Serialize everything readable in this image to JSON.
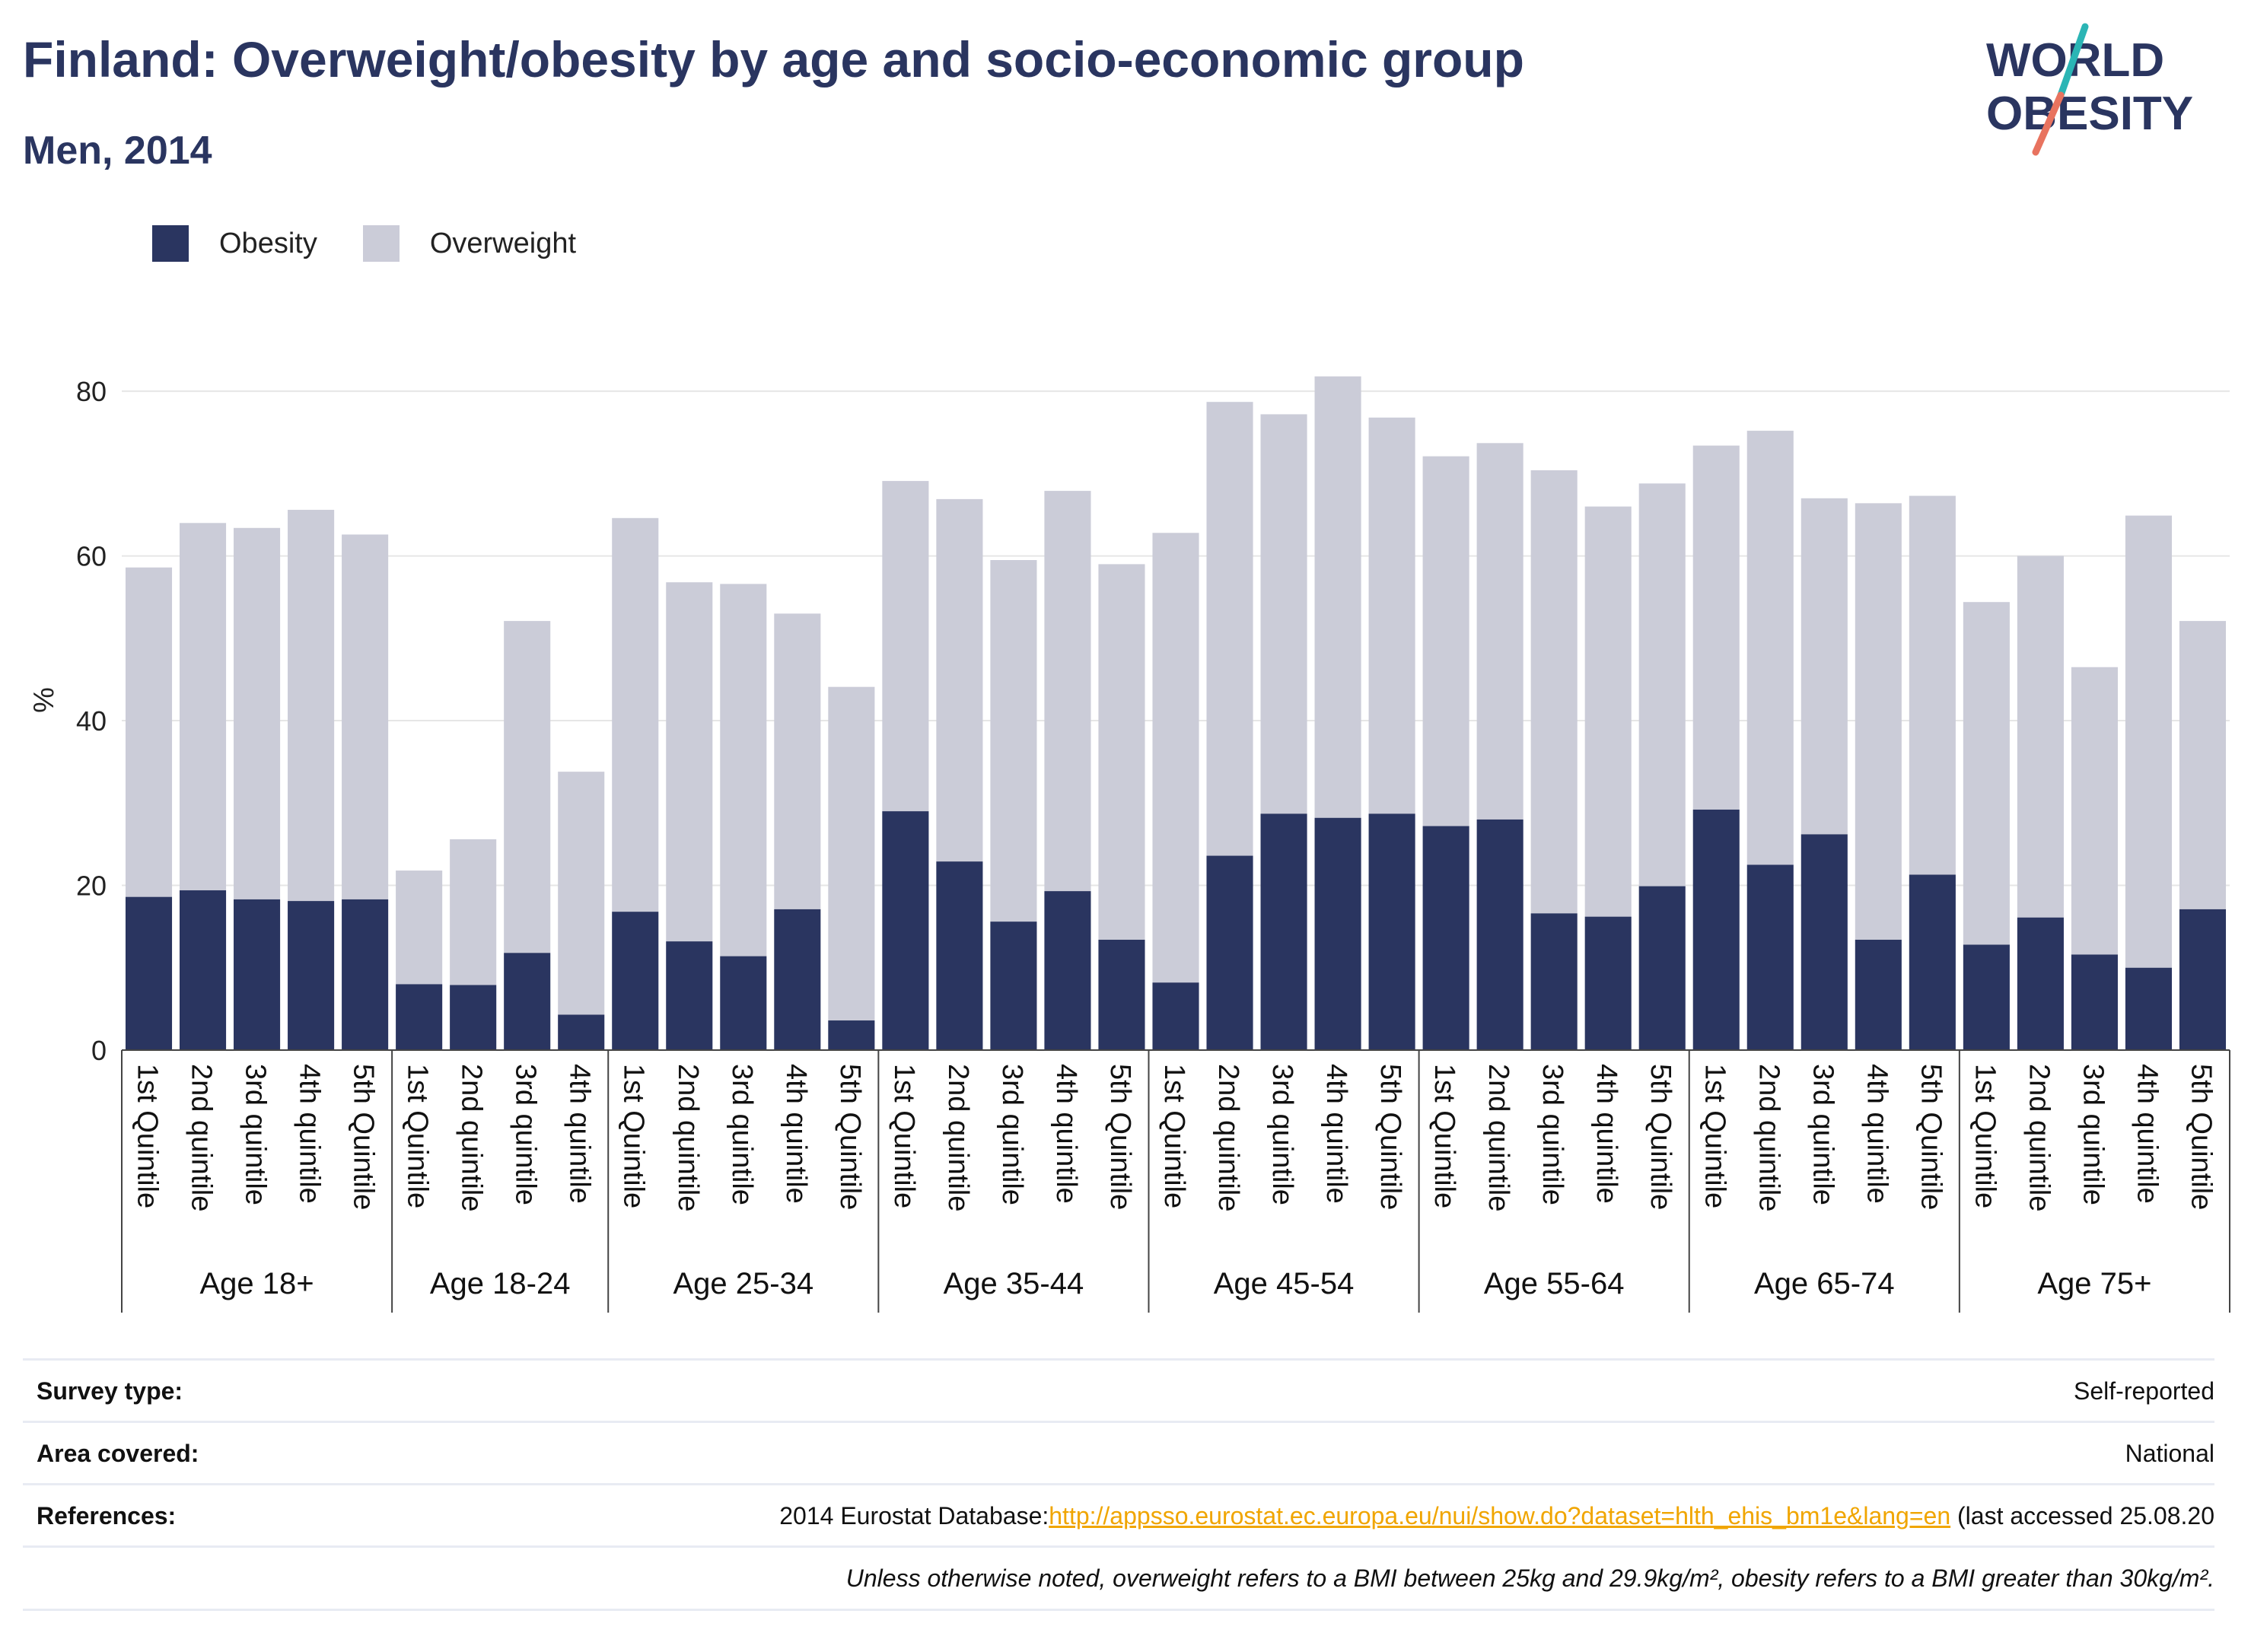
{
  "header": {
    "title": "Finland: Overweight/obesity by age and socio-economic group",
    "subtitle": "Men, 2014"
  },
  "logo": {
    "line1": "WORLD",
    "line2": "OBESITY",
    "icon": "world-obesity-logo"
  },
  "colors": {
    "obesity": "#2a3560",
    "overweight": "#cbccd8",
    "accent_teal": "#2bb5b5",
    "accent_red": "#e8735f",
    "link": "#f0a500"
  },
  "chart_data": {
    "type": "bar",
    "stacked": true,
    "ylabel": "%",
    "ylim": [
      0,
      85
    ],
    "yticks": [
      0,
      20,
      40,
      60,
      80
    ],
    "grid": true,
    "legend_position": "top-left",
    "series_names": [
      "Obesity",
      "Overweight"
    ],
    "groups": [
      {
        "label": "Age 18+",
        "bars": [
          {
            "label": "1st Quintile",
            "obesity": 18.6,
            "total": 58.6
          },
          {
            "label": "2nd quintile",
            "obesity": 19.4,
            "total": 64.0
          },
          {
            "label": "3rd quintile",
            "obesity": 18.3,
            "total": 63.4
          },
          {
            "label": "4th quintile",
            "obesity": 18.1,
            "total": 65.6
          },
          {
            "label": "5th Quintile",
            "obesity": 18.3,
            "total": 62.6
          }
        ]
      },
      {
        "label": "Age 18-24",
        "bars": [
          {
            "label": "1st Quintile",
            "obesity": 8.0,
            "total": 21.8
          },
          {
            "label": "2nd quintile",
            "obesity": 7.9,
            "total": 25.6
          },
          {
            "label": "3rd quintile",
            "obesity": 11.8,
            "total": 52.1
          },
          {
            "label": "4th quintile",
            "obesity": 4.3,
            "total": 33.8
          }
        ]
      },
      {
        "label": "Age 25-34",
        "bars": [
          {
            "label": "1st Quintile",
            "obesity": 16.8,
            "total": 64.6
          },
          {
            "label": "2nd quintile",
            "obesity": 13.2,
            "total": 56.8
          },
          {
            "label": "3rd quintile",
            "obesity": 11.4,
            "total": 56.6
          },
          {
            "label": "4th quintile",
            "obesity": 17.1,
            "total": 53.0
          },
          {
            "label": "5th Quintile",
            "obesity": 3.6,
            "total": 44.1
          }
        ]
      },
      {
        "label": "Age 35-44",
        "bars": [
          {
            "label": "1st Quintile",
            "obesity": 29.0,
            "total": 69.1
          },
          {
            "label": "2nd quintile",
            "obesity": 22.9,
            "total": 66.9
          },
          {
            "label": "3rd quintile",
            "obesity": 15.6,
            "total": 59.5
          },
          {
            "label": "4th quintile",
            "obesity": 19.3,
            "total": 67.9
          },
          {
            "label": "5th Quintile",
            "obesity": 13.4,
            "total": 59.0
          }
        ]
      },
      {
        "label": "Age 45-54",
        "bars": [
          {
            "label": "1st Quintile",
            "obesity": 8.2,
            "total": 62.8
          },
          {
            "label": "2nd quintile",
            "obesity": 23.6,
            "total": 78.7
          },
          {
            "label": "3rd quintile",
            "obesity": 28.7,
            "total": 77.2
          },
          {
            "label": "4th quintile",
            "obesity": 28.2,
            "total": 81.8
          },
          {
            "label": "5th Quintile",
            "obesity": 28.7,
            "total": 76.8
          }
        ]
      },
      {
        "label": "Age 55-64",
        "bars": [
          {
            "label": "1st Quintile",
            "obesity": 27.2,
            "total": 72.1
          },
          {
            "label": "2nd quintile",
            "obesity": 28.0,
            "total": 73.7
          },
          {
            "label": "3rd quintile",
            "obesity": 16.6,
            "total": 70.4
          },
          {
            "label": "4th quintile",
            "obesity": 16.2,
            "total": 66.0
          },
          {
            "label": "5th Quintile",
            "obesity": 19.9,
            "total": 68.8
          }
        ]
      },
      {
        "label": "Age 65-74",
        "bars": [
          {
            "label": "1st Quintile",
            "obesity": 29.2,
            "total": 73.4
          },
          {
            "label": "2nd quintile",
            "obesity": 22.5,
            "total": 75.2
          },
          {
            "label": "3rd quintile",
            "obesity": 26.2,
            "total": 67.0
          },
          {
            "label": "4th quintile",
            "obesity": 13.4,
            "total": 66.4
          },
          {
            "label": "5th Quintile",
            "obesity": 21.3,
            "total": 67.3
          }
        ]
      },
      {
        "label": "Age 75+",
        "bars": [
          {
            "label": "1st Quintile",
            "obesity": 12.8,
            "total": 54.4
          },
          {
            "label": "2nd quintile",
            "obesity": 16.1,
            "total": 60.0
          },
          {
            "label": "3rd quintile",
            "obesity": 11.6,
            "total": 46.5
          },
          {
            "label": "4th quintile",
            "obesity": 10.0,
            "total": 64.9
          },
          {
            "label": "5th Quintile",
            "obesity": 17.1,
            "total": 52.1
          }
        ]
      }
    ]
  },
  "info": {
    "survey_type_label": "Survey type:",
    "survey_type_value": "Self-reported",
    "area_label": "Area covered:",
    "area_value": "National",
    "references_label": "References:",
    "references_prefix": "2014 Eurostat Database:",
    "references_link": "http://appsso.eurostat.ec.europa.eu/nui/show.do?dataset=hlth_ehis_bm1e&lang=en",
    "references_suffix": " (last accessed 25.08.20",
    "note": "Unless otherwise noted, overweight refers to a BMI between 25kg and 29.9kg/m², obesity refers to a BMI greater than 30kg/m²."
  }
}
